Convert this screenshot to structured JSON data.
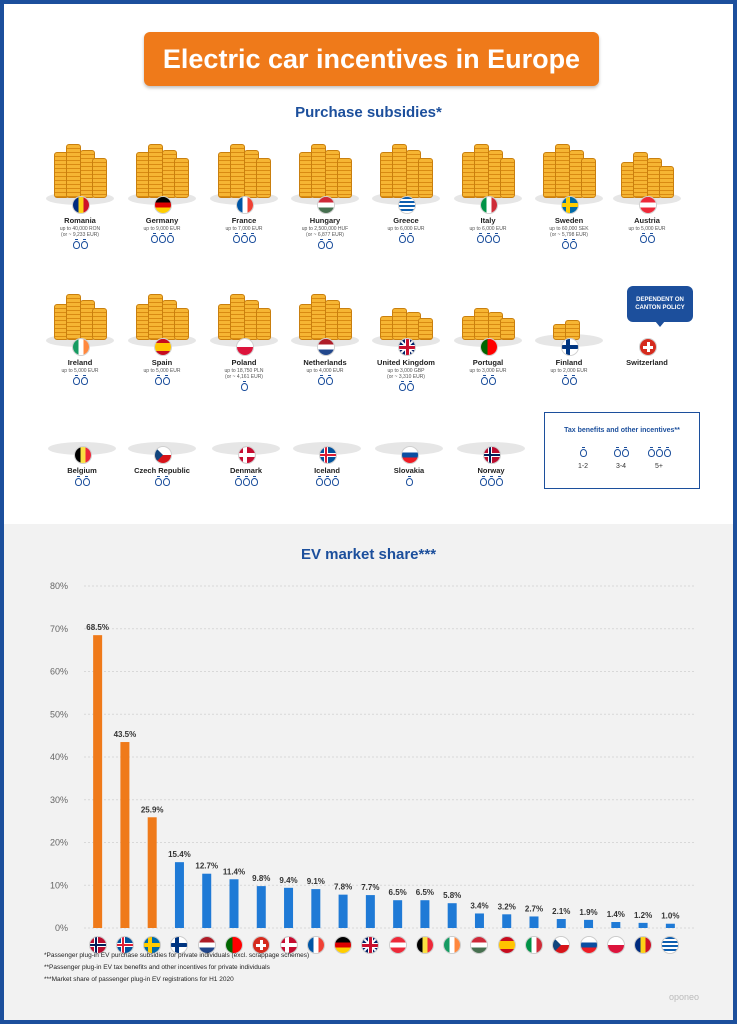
{
  "title": "Electric car incentives in Europe",
  "subsidies_title": "Purchase subsidies*",
  "market_title": "EV market share***",
  "bag_legend": {
    "title": "Tax benefits and other incentives**",
    "items": [
      {
        "label": "1-2",
        "bags": 1
      },
      {
        "label": "3-4",
        "bags": 2
      },
      {
        "label": "5+",
        "bags": 3
      }
    ]
  },
  "switzerland_note": "DEPENDENT ON CANTON POLICY",
  "countries": [
    {
      "name": "Romania",
      "amount": "up to 40,000 RON\n(or ~ 9,233 EUR)",
      "bags": 2,
      "flag": "romania",
      "stack": 4
    },
    {
      "name": "Germany",
      "amount": "up to 9,000 EUR",
      "bags": 3,
      "flag": "germany",
      "stack": 4
    },
    {
      "name": "France",
      "amount": "up to 7,000 EUR",
      "bags": 3,
      "flag": "france",
      "stack": 4
    },
    {
      "name": "Hungary",
      "amount": "up to 2,500,000 HUF\n(or ~ 6,877 EUR)",
      "bags": 2,
      "flag": "hungary",
      "stack": 4
    },
    {
      "name": "Greece",
      "amount": "up to 6,000 EUR",
      "bags": 2,
      "flag": "greece",
      "stack": 4
    },
    {
      "name": "Italy",
      "amount": "up to 6,000 EUR",
      "bags": 3,
      "flag": "italy",
      "stack": 4
    },
    {
      "name": "Sweden",
      "amount": "up to 60,000 SEK\n(or ~ 5,798 EUR)",
      "bags": 2,
      "flag": "sweden",
      "stack": 4
    },
    {
      "name": "Austria",
      "amount": "up to 5,000 EUR",
      "bags": 2,
      "flag": "austria",
      "stack": 3
    },
    {
      "name": "Ireland",
      "amount": "up to 5,000 EUR",
      "bags": 2,
      "flag": "ireland",
      "stack": 3
    },
    {
      "name": "Spain",
      "amount": "up to 5,000 EUR",
      "bags": 2,
      "flag": "spain",
      "stack": 3
    },
    {
      "name": "Poland",
      "amount": "up to 18,750 PLN\n(or ~ 4,161 EUR)",
      "bags": 1,
      "flag": "poland",
      "stack": 3
    },
    {
      "name": "Netherlands",
      "amount": "up to 4,000 EUR",
      "bags": 2,
      "flag": "netherlands",
      "stack": 3
    },
    {
      "name": "United Kingdom",
      "amount": "up to 3,000 GBP\n(or ~ 3,310 EUR)",
      "bags": 2,
      "flag": "uk",
      "stack": 2
    },
    {
      "name": "Portugal",
      "amount": "up to 3,000 EUR",
      "bags": 2,
      "flag": "portugal",
      "stack": 2
    },
    {
      "name": "Finland",
      "amount": "up to 2,000 EUR",
      "bags": 2,
      "flag": "finland",
      "stack": 1
    },
    {
      "name": "Switzerland",
      "amount": "",
      "bags": 0,
      "flag": "switzerland",
      "stack": 0
    },
    {
      "name": "Belgium",
      "amount": "",
      "bags": 2,
      "flag": "belgium",
      "stack": 0
    },
    {
      "name": "Czech Republic",
      "amount": "",
      "bags": 2,
      "flag": "czech",
      "stack": 0
    },
    {
      "name": "Denmark",
      "amount": "",
      "bags": 3,
      "flag": "denmark",
      "stack": 0
    },
    {
      "name": "Iceland",
      "amount": "",
      "bags": 3,
      "flag": "iceland",
      "stack": 0
    },
    {
      "name": "Slovakia",
      "amount": "",
      "bags": 1,
      "flag": "slovakia",
      "stack": 0
    },
    {
      "name": "Norway",
      "amount": "",
      "bags": 3,
      "flag": "norway",
      "stack": 0
    }
  ],
  "chart_data": {
    "type": "bar",
    "title": "EV market share***",
    "ylim": [
      0,
      80
    ],
    "yticks": [
      "0%",
      "10%",
      "20%",
      "30%",
      "40%",
      "50%",
      "60%",
      "70%",
      "80%"
    ],
    "grid": true,
    "categories": [
      "Norway",
      "Iceland",
      "Sweden",
      "Finland",
      "Netherlands",
      "Portugal",
      "Switzerland",
      "Denmark",
      "France",
      "Germany",
      "United Kingdom",
      "Austria",
      "Belgium",
      "Ireland",
      "Hungary",
      "Spain",
      "Italy",
      "Czech Republic",
      "Slovakia",
      "Poland",
      "Romania",
      "Greece"
    ],
    "flags": [
      "norway",
      "iceland",
      "sweden",
      "finland",
      "netherlands",
      "portugal",
      "switzerland",
      "denmark",
      "france",
      "germany",
      "uk",
      "austria",
      "belgium",
      "ireland",
      "hungary",
      "spain",
      "italy",
      "czech",
      "slovakia",
      "poland",
      "romania",
      "greece"
    ],
    "values": [
      68.5,
      43.5,
      25.9,
      15.4,
      12.7,
      11.4,
      9.8,
      9.4,
      9.1,
      7.8,
      7.7,
      6.5,
      6.5,
      5.8,
      3.4,
      3.2,
      2.7,
      2.1,
      1.9,
      1.4,
      1.2,
      1.0
    ],
    "labels": [
      "68.5%",
      "43.5%",
      "25.9%",
      "15.4%",
      "12.7%",
      "11.4%",
      "9.8%",
      "9.4%",
      "9.1%",
      "7.8%",
      "7.7%",
      "6.5%",
      "6.5%",
      "5.8%",
      "3.4%",
      "3.2%",
      "2.7%",
      "2.1%",
      "1.9%",
      "1.4%",
      "1.2%",
      "1.0%"
    ],
    "highlight_count": 3,
    "colors": {
      "highlight": "#ef7a1a",
      "normal": "#1f7ad6",
      "grid": "#d8d8d8",
      "label": "#333333"
    }
  },
  "footnotes": [
    "*Passenger plug-in EV purchase subsidies for private individuals (excl. scrappage schemes)",
    "**Passenger plug-in EV tax benefits and other incentives for private individuals",
    "***Market share of passenger plug-in EV registrations for H1 2020"
  ],
  "watermark": "oponeo",
  "colors": {
    "brand_blue": "#1c4f9c",
    "accent_orange": "#ef7a1a",
    "bar_blue": "#1f7ad6"
  }
}
